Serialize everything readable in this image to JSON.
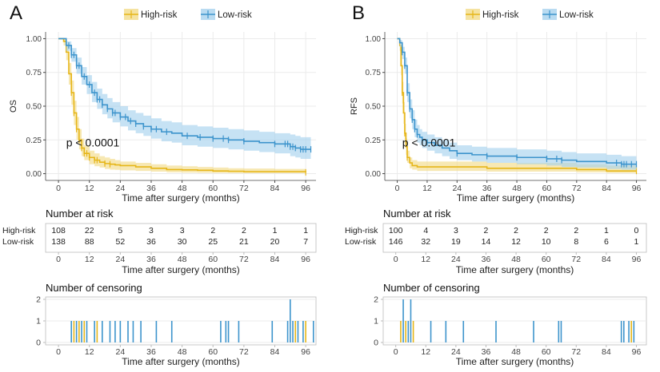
{
  "colors": {
    "high_line": "#e6b619",
    "high_band": "#f3dc8a",
    "low_line": "#3d94cc",
    "low_band": "#a8d2ee",
    "axis": "#444444",
    "panel_border": "#444444",
    "grid": "#ebebeb",
    "text": "#222222"
  },
  "chart_data": [
    {
      "panel": "A",
      "type": "line",
      "subtype": "kaplan-meier",
      "legend": [
        "High-risk",
        "Low-risk"
      ],
      "legend_position": "top",
      "ylabel": "OS",
      "xlabel": "Time after surgery (months)",
      "xlim": [
        -5,
        100
      ],
      "ylim": [
        -0.05,
        1.05
      ],
      "xticks": [
        0,
        12,
        24,
        36,
        48,
        60,
        72,
        84,
        96
      ],
      "yticks": [
        0.0,
        0.25,
        0.5,
        0.75,
        1.0
      ],
      "ytick_labels": [
        "0.00",
        "0.25",
        "0.50",
        "0.75",
        "1.00"
      ],
      "pvalue": "p < 0.0001",
      "pvalue_pos": [
        3,
        0.2
      ],
      "series": [
        {
          "name": "High-risk",
          "x": [
            0,
            2,
            3,
            4,
            5,
            6,
            7,
            8,
            9,
            10,
            12,
            14,
            16,
            18,
            20,
            22,
            24,
            30,
            36,
            42,
            48,
            54,
            60,
            66,
            72,
            84,
            96
          ],
          "y": [
            1.0,
            0.98,
            0.9,
            0.74,
            0.6,
            0.45,
            0.33,
            0.25,
            0.19,
            0.15,
            0.12,
            0.1,
            0.085,
            0.075,
            0.07,
            0.065,
            0.06,
            0.05,
            0.04,
            0.03,
            0.028,
            0.025,
            0.02,
            0.018,
            0.015,
            0.015,
            0.01
          ],
          "lower": [
            1.0,
            0.95,
            0.84,
            0.66,
            0.51,
            0.36,
            0.25,
            0.18,
            0.13,
            0.1,
            0.07,
            0.055,
            0.045,
            0.035,
            0.03,
            0.028,
            0.025,
            0.02,
            0.015,
            0.01,
            0.008,
            0.006,
            0.005,
            0.004,
            0.003,
            0.003,
            0.002
          ],
          "upper": [
            1.0,
            1.0,
            0.96,
            0.82,
            0.69,
            0.54,
            0.42,
            0.33,
            0.26,
            0.21,
            0.17,
            0.15,
            0.13,
            0.12,
            0.11,
            0.1,
            0.09,
            0.08,
            0.07,
            0.06,
            0.055,
            0.05,
            0.045,
            0.04,
            0.038,
            0.035,
            0.03
          ],
          "censor_x": [
            5,
            6,
            7,
            8,
            9,
            10,
            11,
            12,
            14,
            15,
            18,
            20,
            96
          ]
        },
        {
          "name": "Low-risk",
          "x": [
            0,
            3,
            5,
            7,
            9,
            11,
            13,
            15,
            17,
            19,
            21,
            24,
            27,
            30,
            33,
            36,
            40,
            44,
            48,
            54,
            60,
            66,
            72,
            78,
            84,
            88,
            90,
            92,
            94,
            96,
            98
          ],
          "y": [
            1.0,
            0.95,
            0.88,
            0.8,
            0.72,
            0.66,
            0.6,
            0.55,
            0.51,
            0.48,
            0.45,
            0.42,
            0.39,
            0.37,
            0.35,
            0.33,
            0.31,
            0.3,
            0.28,
            0.27,
            0.26,
            0.25,
            0.24,
            0.23,
            0.22,
            0.22,
            0.2,
            0.19,
            0.18,
            0.18,
            0.18
          ],
          "lower": [
            1.0,
            0.91,
            0.83,
            0.74,
            0.66,
            0.59,
            0.53,
            0.48,
            0.44,
            0.41,
            0.38,
            0.35,
            0.32,
            0.3,
            0.28,
            0.26,
            0.24,
            0.23,
            0.21,
            0.2,
            0.19,
            0.18,
            0.17,
            0.16,
            0.15,
            0.15,
            0.13,
            0.12,
            0.11,
            0.11,
            0.11
          ],
          "upper": [
            1.0,
            0.98,
            0.93,
            0.86,
            0.79,
            0.73,
            0.68,
            0.63,
            0.59,
            0.56,
            0.53,
            0.5,
            0.47,
            0.45,
            0.43,
            0.41,
            0.39,
            0.38,
            0.36,
            0.35,
            0.34,
            0.33,
            0.32,
            0.31,
            0.3,
            0.3,
            0.29,
            0.28,
            0.27,
            0.27,
            0.27
          ],
          "censor_x": [
            4,
            5,
            6,
            7,
            8,
            10,
            12,
            14,
            15,
            16,
            17,
            19,
            21,
            22,
            24,
            26,
            28,
            30,
            33,
            36,
            38,
            42,
            50,
            55,
            60,
            64,
            66,
            72,
            84,
            88,
            89,
            90,
            91,
            92,
            94,
            95,
            96,
            98
          ]
        }
      ]
    },
    {
      "panel": "B",
      "type": "line",
      "subtype": "kaplan-meier",
      "legend": [
        "High-risk",
        "Low-risk"
      ],
      "legend_position": "top",
      "ylabel": "RFS",
      "xlabel": "Time after surgery (months)",
      "xlim": [
        -5,
        100
      ],
      "ylim": [
        -0.05,
        1.05
      ],
      "xticks": [
        0,
        12,
        24,
        36,
        48,
        60,
        72,
        84,
        96
      ],
      "yticks": [
        0.0,
        0.25,
        0.5,
        0.75,
        1.0
      ],
      "ytick_labels": [
        "0.00",
        "0.25",
        "0.50",
        "0.75",
        "1.00"
      ],
      "pvalue": "p < 0.0001",
      "pvalue_pos": [
        2,
        0.2
      ],
      "series": [
        {
          "name": "High-risk",
          "x": [
            0,
            1,
            1.5,
            2,
            2.5,
            3,
            3.5,
            4,
            5,
            6,
            8,
            12,
            24,
            36,
            48,
            60,
            72,
            84,
            96
          ],
          "y": [
            1.0,
            0.95,
            0.8,
            0.6,
            0.45,
            0.3,
            0.2,
            0.12,
            0.08,
            0.06,
            0.05,
            0.05,
            0.05,
            0.04,
            0.04,
            0.04,
            0.03,
            0.02,
            0.02
          ],
          "lower": [
            1.0,
            0.91,
            0.73,
            0.52,
            0.37,
            0.23,
            0.14,
            0.08,
            0.04,
            0.03,
            0.02,
            0.02,
            0.02,
            0.015,
            0.015,
            0.015,
            0.01,
            0.005,
            0.005
          ],
          "upper": [
            1.0,
            0.99,
            0.87,
            0.68,
            0.53,
            0.37,
            0.26,
            0.17,
            0.12,
            0.1,
            0.09,
            0.09,
            0.09,
            0.08,
            0.08,
            0.08,
            0.07,
            0.06,
            0.06
          ],
          "censor_x": [
            2,
            3,
            4,
            96
          ]
        },
        {
          "name": "Low-risk",
          "x": [
            0,
            1,
            2,
            3,
            4,
            5,
            6,
            7,
            8,
            9,
            10,
            12,
            15,
            18,
            21,
            24,
            30,
            36,
            48,
            60,
            66,
            72,
            84,
            90,
            96
          ],
          "y": [
            1.0,
            0.97,
            0.9,
            0.8,
            0.6,
            0.48,
            0.4,
            0.33,
            0.29,
            0.27,
            0.25,
            0.23,
            0.21,
            0.19,
            0.17,
            0.15,
            0.14,
            0.13,
            0.12,
            0.11,
            0.1,
            0.09,
            0.08,
            0.07,
            0.07
          ],
          "lower": [
            1.0,
            0.94,
            0.85,
            0.74,
            0.53,
            0.41,
            0.33,
            0.27,
            0.23,
            0.21,
            0.19,
            0.17,
            0.15,
            0.13,
            0.11,
            0.1,
            0.09,
            0.08,
            0.07,
            0.06,
            0.05,
            0.045,
            0.035,
            0.03,
            0.03
          ],
          "upper": [
            1.0,
            0.99,
            0.94,
            0.86,
            0.67,
            0.55,
            0.47,
            0.4,
            0.36,
            0.33,
            0.31,
            0.29,
            0.27,
            0.25,
            0.23,
            0.21,
            0.2,
            0.19,
            0.18,
            0.17,
            0.16,
            0.15,
            0.14,
            0.13,
            0.13
          ],
          "censor_x": [
            2,
            3,
            4,
            5,
            6,
            7,
            8,
            10,
            12,
            24,
            36,
            48,
            60,
            64,
            66,
            88,
            90,
            91,
            92,
            94,
            96
          ]
        }
      ]
    }
  ],
  "panels": [
    {
      "label": "A",
      "risk_title": "Number at risk",
      "risk_rows": [
        {
          "name": "High-risk",
          "values": [
            "108",
            "22",
            "5",
            "3",
            "3",
            "2",
            "2",
            "1",
            "1"
          ]
        },
        {
          "name": "Low-risk",
          "values": [
            "138",
            "88",
            "52",
            "36",
            "30",
            "25",
            "21",
            "20",
            "7"
          ]
        }
      ],
      "risk_xticks": [
        "0",
        "12",
        "24",
        "36",
        "48",
        "60",
        "72",
        "84",
        "96"
      ],
      "risk_xlabel": "Time after surgery (months)",
      "censor_title": "Number of censoring",
      "censor_yticks": [
        "0",
        "1",
        "2"
      ],
      "censor_xticks": [
        "0",
        "12",
        "24",
        "36",
        "48",
        "60",
        "72",
        "84",
        "96"
      ],
      "censor_xlabel": "Time after surgery (months)",
      "censor_bars": [
        {
          "x": 5,
          "h": 1,
          "g": "low"
        },
        {
          "x": 6,
          "h": 1,
          "g": "high"
        },
        {
          "x": 7,
          "h": 1,
          "g": "low"
        },
        {
          "x": 8,
          "h": 1,
          "g": "high"
        },
        {
          "x": 9,
          "h": 1,
          "g": "low"
        },
        {
          "x": 10,
          "h": 1,
          "g": "high"
        },
        {
          "x": 11,
          "h": 1,
          "g": "low"
        },
        {
          "x": 14,
          "h": 1,
          "g": "low"
        },
        {
          "x": 15,
          "h": 1,
          "g": "high"
        },
        {
          "x": 17,
          "h": 1,
          "g": "low"
        },
        {
          "x": 20,
          "h": 1,
          "g": "low"
        },
        {
          "x": 22,
          "h": 1,
          "g": "low"
        },
        {
          "x": 24,
          "h": 1,
          "g": "low"
        },
        {
          "x": 27,
          "h": 1,
          "g": "low"
        },
        {
          "x": 29,
          "h": 1,
          "g": "low"
        },
        {
          "x": 32,
          "h": 1,
          "g": "low"
        },
        {
          "x": 38,
          "h": 1,
          "g": "low"
        },
        {
          "x": 44,
          "h": 1,
          "g": "low"
        },
        {
          "x": 63,
          "h": 1,
          "g": "low"
        },
        {
          "x": 65,
          "h": 1,
          "g": "low"
        },
        {
          "x": 66,
          "h": 1,
          "g": "low"
        },
        {
          "x": 70,
          "h": 1,
          "g": "low"
        },
        {
          "x": 83,
          "h": 1,
          "g": "low"
        },
        {
          "x": 89,
          "h": 1,
          "g": "low"
        },
        {
          "x": 90,
          "h": 2,
          "g": "low"
        },
        {
          "x": 91,
          "h": 1,
          "g": "low"
        },
        {
          "x": 92,
          "h": 1,
          "g": "high"
        },
        {
          "x": 93,
          "h": 1,
          "g": "low"
        },
        {
          "x": 95,
          "h": 1,
          "g": "low"
        },
        {
          "x": 96,
          "h": 1,
          "g": "high"
        },
        {
          "x": 99,
          "h": 1,
          "g": "low"
        }
      ]
    },
    {
      "label": "B",
      "risk_title": "Number at risk",
      "risk_rows": [
        {
          "name": "High-risk",
          "values": [
            "100",
            "4",
            "3",
            "2",
            "2",
            "2",
            "2",
            "1",
            "0"
          ]
        },
        {
          "name": "Low-risk",
          "values": [
            "146",
            "32",
            "19",
            "14",
            "12",
            "10",
            "8",
            "6",
            "1"
          ]
        }
      ],
      "risk_xticks": [
        "0",
        "12",
        "24",
        "36",
        "48",
        "60",
        "72",
        "84",
        "96"
      ],
      "risk_xlabel": "Time after surgery (months)",
      "censor_title": "Number of censoring",
      "censor_yticks": [
        "0",
        "1",
        "2"
      ],
      "censor_xticks": [
        "0",
        "12",
        "24",
        "36",
        "48",
        "60",
        "72",
        "84",
        "96"
      ],
      "censor_xlabel": "Time after surgery (months)",
      "censor_bars": [
        {
          "x": 2,
          "h": 1,
          "g": "high"
        },
        {
          "x": 3,
          "h": 2,
          "g": "low"
        },
        {
          "x": 4,
          "h": 1,
          "g": "high"
        },
        {
          "x": 5,
          "h": 1,
          "g": "low"
        },
        {
          "x": 6,
          "h": 2,
          "g": "low"
        },
        {
          "x": 7,
          "h": 1,
          "g": "high"
        },
        {
          "x": 14,
          "h": 1,
          "g": "low"
        },
        {
          "x": 20,
          "h": 1,
          "g": "low"
        },
        {
          "x": 27,
          "h": 1,
          "g": "low"
        },
        {
          "x": 40,
          "h": 1,
          "g": "low"
        },
        {
          "x": 55,
          "h": 1,
          "g": "low"
        },
        {
          "x": 65,
          "h": 1,
          "g": "low"
        },
        {
          "x": 66,
          "h": 1,
          "g": "low"
        },
        {
          "x": 90,
          "h": 1,
          "g": "low"
        },
        {
          "x": 91,
          "h": 1,
          "g": "low"
        },
        {
          "x": 93,
          "h": 1,
          "g": "low"
        },
        {
          "x": 94,
          "h": 1,
          "g": "high"
        },
        {
          "x": 95,
          "h": 1,
          "g": "low"
        }
      ]
    }
  ]
}
